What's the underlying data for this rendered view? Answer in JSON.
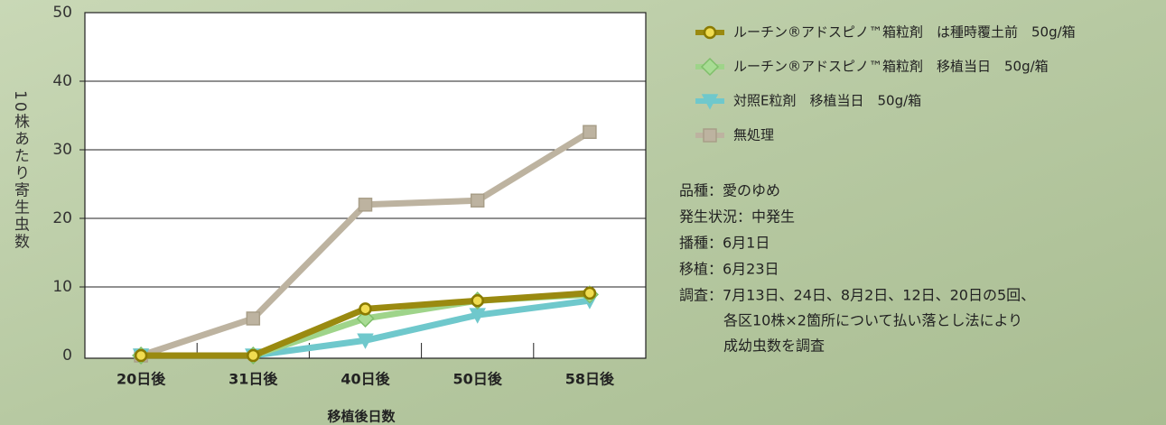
{
  "chart_data": {
    "type": "line",
    "y_label": "10株あたり寄生虫数",
    "x_label": "移植後日数",
    "categories": [
      "20日後",
      "31日後",
      "40日後",
      "50日後",
      "58日後"
    ],
    "series": [
      {
        "name": "ルーチン®アドスピノ™箱粒剤　は種時覆土前　50g/箱",
        "color": "#9a8a10",
        "marker_color": "#f0dc50",
        "marker": "circle",
        "values": [
          0,
          0,
          6.8,
          8.0,
          9.1
        ]
      },
      {
        "name": "ルーチン®アドスピノ™箱粒剤　移植当日　50g/箱",
        "color": "#9fd48a",
        "marker_color": "#a8dc94",
        "marker": "diamond",
        "values": [
          0,
          0,
          5.4,
          8.0,
          8.9
        ]
      },
      {
        "name": "対照E粒剤　移植当日　50g/箱",
        "color": "#6fc8cc",
        "marker_color": "#6fc8cc",
        "marker": "triangle",
        "values": [
          0,
          0,
          2.2,
          5.9,
          8.0
        ]
      },
      {
        "name": "無処理",
        "color": "#bdb3a0",
        "marker_color": "#bdb3a0",
        "marker": "square",
        "values": [
          0,
          5.4,
          22,
          22.6,
          32.6
        ]
      }
    ],
    "ylim": [
      0,
      50
    ],
    "yticks": [
      0,
      10,
      20,
      30,
      40,
      50
    ],
    "grid": true,
    "notes": [
      "品種：愛のゆめ",
      "発生状況：中発生",
      "播種：6月1日",
      "移植：6月23日",
      "調査：7月13日、24日、8月2日、12日、20日の5回、",
      "各区10株×2箇所について払い落とし法により",
      "成幼虫数を調査"
    ]
  }
}
